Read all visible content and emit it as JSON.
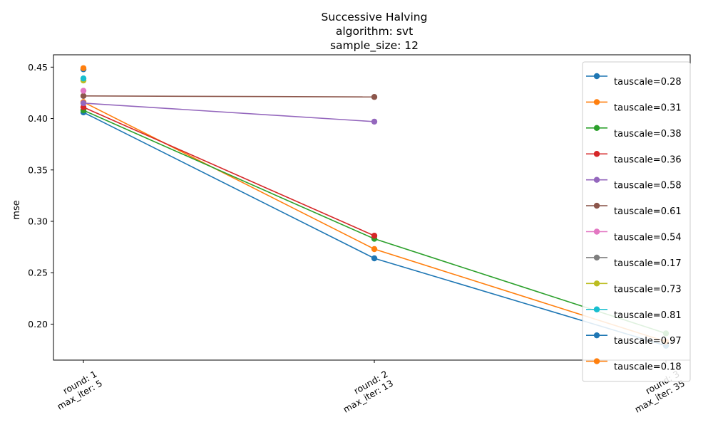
{
  "chart_data": {
    "type": "line",
    "title_lines": [
      "Successive Halving",
      "algorithm: svt",
      "sample_size: 12"
    ],
    "ylabel": "mse",
    "xlabel": "",
    "ylim": [
      0.165,
      0.462
    ],
    "y_ticks": [
      "0.20",
      "0.25",
      "0.30",
      "0.35",
      "0.40",
      "0.45"
    ],
    "y_tick_values": [
      0.2,
      0.25,
      0.3,
      0.35,
      0.4,
      0.45
    ],
    "categories": [
      [
        "round: 1",
        "max_iter: 5"
      ],
      [
        "round: 2",
        "max_iter: 13"
      ],
      [
        "round: 3",
        "max_iter: 35"
      ]
    ],
    "grid": false,
    "legend_position": "right",
    "series": [
      {
        "name": "tauscale=0.28",
        "color": "#1f77b4",
        "values": [
          0.406,
          0.264,
          0.179
        ]
      },
      {
        "name": "tauscale=0.31",
        "color": "#ff7f0e",
        "values": [
          0.416,
          0.273,
          0.183
        ]
      },
      {
        "name": "tauscale=0.38",
        "color": "#2ca02c",
        "values": [
          0.408,
          0.283,
          0.191
        ]
      },
      {
        "name": "tauscale=0.36",
        "color": "#d62728",
        "values": [
          0.411,
          0.286,
          null
        ]
      },
      {
        "name": "tauscale=0.58",
        "color": "#9467bd",
        "values": [
          0.415,
          0.397,
          null
        ]
      },
      {
        "name": "tauscale=0.61",
        "color": "#8c564b",
        "values": [
          0.422,
          0.421,
          null
        ]
      },
      {
        "name": "tauscale=0.54",
        "color": "#e377c2",
        "values": [
          0.427,
          null,
          null
        ]
      },
      {
        "name": "tauscale=0.17",
        "color": "#7f7f7f",
        "values": [
          0.448,
          null,
          null
        ]
      },
      {
        "name": "tauscale=0.73",
        "color": "#bcbd22",
        "values": [
          0.437,
          null,
          null
        ]
      },
      {
        "name": "tauscale=0.81",
        "color": "#17becf",
        "values": [
          0.439,
          null,
          null
        ]
      },
      {
        "name": "tauscale=0.97",
        "color": "#1f77b4",
        "values": [
          0.448,
          null,
          null
        ]
      },
      {
        "name": "tauscale=0.18",
        "color": "#ff7f0e",
        "values": [
          0.449,
          null,
          null
        ]
      }
    ]
  }
}
